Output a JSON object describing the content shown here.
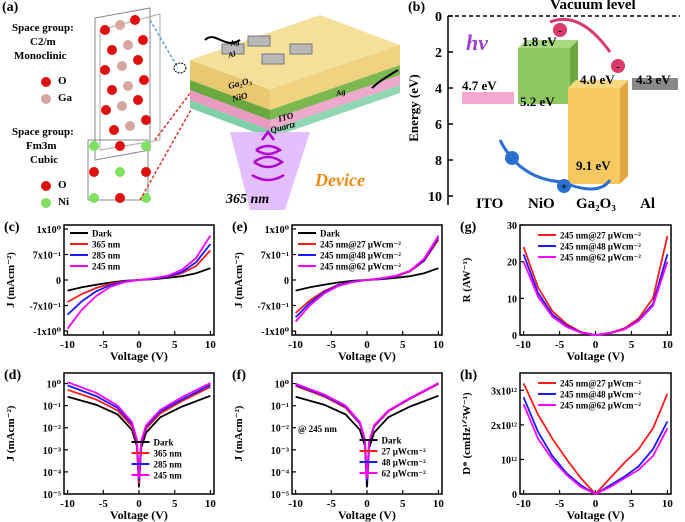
{
  "panel_a": {
    "label": "(a)",
    "sg1": [
      "Space group:",
      "C2/m",
      "Monoclinic"
    ],
    "leg1": [
      "O",
      "Ga"
    ],
    "sg2": [
      "Space group:",
      "Fm3m",
      "Cubic"
    ],
    "leg2": [
      "O",
      "Ni"
    ],
    "layers": {
      "ga2o3": "Ga₂O₃",
      "nio": "NiO",
      "ito": "ITO",
      "quartz": "Quartz"
    },
    "electrodes": {
      "ag1": "Ag",
      "al": "Al",
      "ag2": "Ag"
    },
    "light": "365 nm",
    "device": "Device"
  },
  "panel_b": {
    "label": "(b)",
    "title": "Vacuum level",
    "ylabel": "Energy (eV)",
    "yticks": [
      "0",
      "2",
      "4",
      "6",
      "8",
      "10"
    ],
    "hv": "hν",
    "levels": {
      "ito": "4.7 eV",
      "nio_cb": "1.8 eV",
      "nio_vb": "5.2 eV",
      "ga_cb": "4.0 eV",
      "ga_vb": "9.1 eV",
      "al": "4.3 eV"
    },
    "materials": [
      "ITO",
      "NiO",
      "Ga₂O₃",
      "Al"
    ]
  },
  "chart_data": [
    {
      "id": "c",
      "label": "(c)",
      "type": "line",
      "xlabel": "Voltage (V)",
      "ylabel": "J (mAcm⁻²)",
      "xticks": [
        "-10",
        "-5",
        "0",
        "5",
        "10"
      ],
      "yticks": [
        "1x10⁰",
        "7x10⁻¹",
        "0",
        "-7x10⁻¹",
        "-1x10⁰"
      ],
      "series": [
        {
          "name": "Dark",
          "color": "#000000",
          "x": [
            -10,
            -8,
            -6,
            -4,
            -2,
            0,
            2,
            4,
            6,
            8,
            10
          ],
          "y": [
            -0.25,
            -0.17,
            -0.11,
            -0.06,
            -0.02,
            0,
            0.02,
            0.05,
            0.09,
            0.16,
            0.28
          ]
        },
        {
          "name": "365 nm",
          "color": "#ff1a1a",
          "x": [
            -10,
            -8,
            -6,
            -4,
            -2,
            0,
            2,
            4,
            6,
            8,
            10
          ],
          "y": [
            -0.52,
            -0.33,
            -0.19,
            -0.09,
            -0.03,
            0,
            0.03,
            0.07,
            0.16,
            0.33,
            0.7
          ]
        },
        {
          "name": "285 nm",
          "color": "#1a1aff",
          "x": [
            -10,
            -8,
            -6,
            -4,
            -2,
            0,
            2,
            4,
            6,
            8,
            10
          ],
          "y": [
            -0.82,
            -0.5,
            -0.27,
            -0.12,
            -0.04,
            0,
            0.03,
            0.08,
            0.19,
            0.42,
            0.85
          ]
        },
        {
          "name": "245 nm",
          "color": "#ff00ff",
          "x": [
            -10,
            -8,
            -6,
            -4,
            -2,
            0,
            2,
            4,
            6,
            8,
            10
          ],
          "y": [
            -1.15,
            -0.7,
            -0.38,
            -0.16,
            -0.05,
            0,
            0.04,
            0.1,
            0.24,
            0.52,
            1.05
          ]
        }
      ]
    },
    {
      "id": "e",
      "label": "(e)",
      "type": "line",
      "xlabel": "Voltage (V)",
      "ylabel": "J (mAcm⁻²)",
      "xticks": [
        "-10",
        "-5",
        "0",
        "5",
        "10"
      ],
      "yticks": [
        "1x10⁰",
        "7x10⁻¹",
        "0",
        "-7x10⁻¹",
        "-1x10⁰"
      ],
      "series": [
        {
          "name": "Dark",
          "color": "#000000",
          "x": [
            -10,
            -8,
            -6,
            -4,
            -2,
            0,
            2,
            4,
            6,
            8,
            10
          ],
          "y": [
            -0.25,
            -0.17,
            -0.11,
            -0.06,
            -0.02,
            0,
            0.02,
            0.05,
            0.09,
            0.16,
            0.28
          ]
        },
        {
          "name": "245 nm@27 μWcm⁻²",
          "color": "#ff1a1a",
          "x": [
            -10,
            -8,
            -6,
            -4,
            -2,
            0,
            2,
            4,
            6,
            8,
            10
          ],
          "y": [
            -0.78,
            -0.48,
            -0.26,
            -0.11,
            -0.04,
            0,
            0.03,
            0.08,
            0.2,
            0.45,
            0.95
          ]
        },
        {
          "name": "245 nm@48 μWcm⁻²",
          "color": "#1a1aff",
          "x": [
            -10,
            -8,
            -6,
            -4,
            -2,
            0,
            2,
            4,
            6,
            8,
            10
          ],
          "y": [
            -0.88,
            -0.54,
            -0.29,
            -0.12,
            -0.04,
            0,
            0.03,
            0.09,
            0.21,
            0.47,
            1.0
          ]
        },
        {
          "name": "245 nm@62 μWcm⁻²",
          "color": "#ff00ff",
          "x": [
            -10,
            -8,
            -6,
            -4,
            -2,
            0,
            2,
            4,
            6,
            8,
            10
          ],
          "y": [
            -0.98,
            -0.6,
            -0.32,
            -0.14,
            -0.05,
            0,
            0.04,
            0.1,
            0.22,
            0.5,
            1.05
          ]
        }
      ]
    },
    {
      "id": "g",
      "label": "(g)",
      "type": "line",
      "xlabel": "Voltage (V)",
      "ylabel": "R (AW⁻¹)",
      "xticks": [
        "-10",
        "-5",
        "0",
        "5",
        "10"
      ],
      "yticks": [
        "30",
        "20",
        "10",
        "0"
      ],
      "ylim": [
        0,
        30
      ],
      "series": [
        {
          "name": "245 nm@27 μWcm⁻²",
          "color": "#ff1a1a",
          "x": [
            -10,
            -8,
            -6,
            -4,
            -2,
            0,
            2,
            4,
            6,
            8,
            10
          ],
          "y": [
            24,
            13,
            6.5,
            3,
            0.8,
            0,
            0.6,
            1.8,
            4.5,
            10,
            27
          ]
        },
        {
          "name": "245 nm@48 μWcm⁻²",
          "color": "#1a1aff",
          "x": [
            -10,
            -8,
            -6,
            -4,
            -2,
            0,
            2,
            4,
            6,
            8,
            10
          ],
          "y": [
            22,
            11.5,
            5.6,
            2.5,
            0.7,
            0,
            0.5,
            1.6,
            4,
            8.5,
            22
          ]
        },
        {
          "name": "245 nm@62 μWcm⁻²",
          "color": "#ff00ff",
          "x": [
            -10,
            -8,
            -6,
            -4,
            -2,
            0,
            2,
            4,
            6,
            8,
            10
          ],
          "y": [
            20,
            10.5,
            5,
            2.2,
            0.6,
            0,
            0.5,
            1.5,
            3.8,
            8,
            20
          ]
        }
      ]
    },
    {
      "id": "d",
      "label": "(d)",
      "type": "line",
      "xlabel": "Voltage (V)",
      "ylabel": "J (mAcm⁻²)",
      "xticks": [
        "-10",
        "-5",
        "0",
        "5",
        "10"
      ],
      "yticks": [
        "10⁰",
        "10⁻¹",
        "10⁻²",
        "10⁻³",
        "10⁻⁴",
        "10⁻⁵"
      ],
      "ylim": [
        1e-05,
        3
      ],
      "yscale": "log",
      "series": [
        {
          "name": "Dark",
          "color": "#000000",
          "x": [
            -10,
            -6,
            -3,
            -1,
            -0.3,
            0,
            0.3,
            1,
            3,
            6,
            10
          ],
          "y": [
            0.25,
            0.11,
            0.04,
            0.008,
            0.0015,
            2e-05,
            0.0012,
            0.006,
            0.03,
            0.09,
            0.28
          ]
        },
        {
          "name": "365 nm",
          "color": "#ff1a1a",
          "x": [
            -10,
            -6,
            -3,
            -1,
            -0.3,
            0,
            0.3,
            1,
            3,
            6,
            10
          ],
          "y": [
            0.52,
            0.19,
            0.06,
            0.012,
            0.002,
            3e-05,
            0.0018,
            0.009,
            0.045,
            0.16,
            0.7
          ]
        },
        {
          "name": "285 nm",
          "color": "#1a1aff",
          "x": [
            -10,
            -6,
            -3,
            -1,
            -0.3,
            0,
            0.3,
            1,
            3,
            6,
            10
          ],
          "y": [
            0.82,
            0.27,
            0.08,
            0.015,
            0.0025,
            4e-05,
            0.002,
            0.011,
            0.055,
            0.19,
            0.85
          ]
        },
        {
          "name": "245 nm",
          "color": "#ff00ff",
          "x": [
            -10,
            -6,
            -3,
            -1,
            -0.3,
            0,
            0.3,
            1,
            3,
            6,
            10
          ],
          "y": [
            1.15,
            0.38,
            0.1,
            0.018,
            0.003,
            5e-05,
            0.0025,
            0.013,
            0.065,
            0.24,
            1.05
          ]
        }
      ]
    },
    {
      "id": "f",
      "label": "(f)",
      "type": "line",
      "xlabel": "Voltage (V)",
      "ylabel": "J (mAcm⁻²)",
      "xticks": [
        "-10",
        "-5",
        "0",
        "5",
        "10"
      ],
      "yticks": [
        "10⁰",
        "10⁻¹",
        "10⁻²",
        "10⁻³",
        "10⁻⁴",
        "10⁻⁵"
      ],
      "ylim": [
        1e-05,
        3
      ],
      "yscale": "log",
      "legend_title": "@ 245 nm",
      "series": [
        {
          "name": "Dark",
          "color": "#000000",
          "x": [
            -10,
            -6,
            -3,
            -1,
            -0.3,
            0,
            0.3,
            1,
            3,
            6,
            10
          ],
          "y": [
            0.25,
            0.11,
            0.04,
            0.008,
            0.0015,
            2e-05,
            0.0012,
            0.006,
            0.03,
            0.09,
            0.28
          ]
        },
        {
          "name": "27 μWcm⁻²",
          "color": "#ff1a1a",
          "x": [
            -10,
            -6,
            -3,
            -1,
            -0.3,
            0,
            0.3,
            1,
            3,
            6,
            10
          ],
          "y": [
            0.78,
            0.26,
            0.08,
            0.015,
            0.0025,
            4e-05,
            0.002,
            0.011,
            0.055,
            0.2,
            0.95
          ]
        },
        {
          "name": "48 μWcm⁻²",
          "color": "#1a1aff",
          "x": [
            -10,
            -6,
            -3,
            -1,
            -0.3,
            0,
            0.3,
            1,
            3,
            6,
            10
          ],
          "y": [
            0.88,
            0.29,
            0.09,
            0.016,
            0.0027,
            4e-05,
            0.0021,
            0.012,
            0.058,
            0.21,
            1.0
          ]
        },
        {
          "name": "62 μWcm⁻²",
          "color": "#ff00ff",
          "x": [
            -10,
            -6,
            -3,
            -1,
            -0.3,
            0,
            0.3,
            1,
            3,
            6,
            10
          ],
          "y": [
            0.98,
            0.32,
            0.1,
            0.018,
            0.003,
            5e-05,
            0.0023,
            0.013,
            0.06,
            0.22,
            1.05
          ]
        }
      ]
    },
    {
      "id": "h",
      "label": "(h)",
      "type": "line",
      "xlabel": "Voltage (V)",
      "ylabel": "D* (cmHz¹ᐟ²W⁻¹)",
      "xticks": [
        "-10",
        "-5",
        "0",
        "5",
        "10"
      ],
      "yticks": [
        "3x10¹²",
        "2x10¹²",
        "10¹²",
        "0"
      ],
      "ylim": [
        0,
        3.5
      ],
      "series": [
        {
          "name": "245 nm@27 μWcm⁻²",
          "color": "#ff1a1a",
          "x": [
            -10,
            -8,
            -6,
            -4,
            -2,
            0,
            2,
            4,
            6,
            8,
            10
          ],
          "y": [
            3.2,
            2.3,
            1.6,
            1.0,
            0.45,
            0,
            0.45,
            0.9,
            1.3,
            1.9,
            2.9
          ]
        },
        {
          "name": "245 nm@48 μWcm⁻²",
          "color": "#1a1aff",
          "x": [
            -10,
            -8,
            -6,
            -4,
            -2,
            0,
            2,
            4,
            6,
            8,
            10
          ],
          "y": [
            2.8,
            1.8,
            1.1,
            0.6,
            0.25,
            0,
            0.25,
            0.5,
            0.8,
            1.3,
            2.1
          ]
        },
        {
          "name": "245 nm@62 μWcm⁻²",
          "color": "#ff00ff",
          "x": [
            -10,
            -8,
            -6,
            -4,
            -2,
            0,
            2,
            4,
            6,
            8,
            10
          ],
          "y": [
            2.6,
            1.6,
            1.0,
            0.55,
            0.2,
            0,
            0.2,
            0.45,
            0.7,
            1.1,
            1.9
          ]
        }
      ]
    }
  ]
}
